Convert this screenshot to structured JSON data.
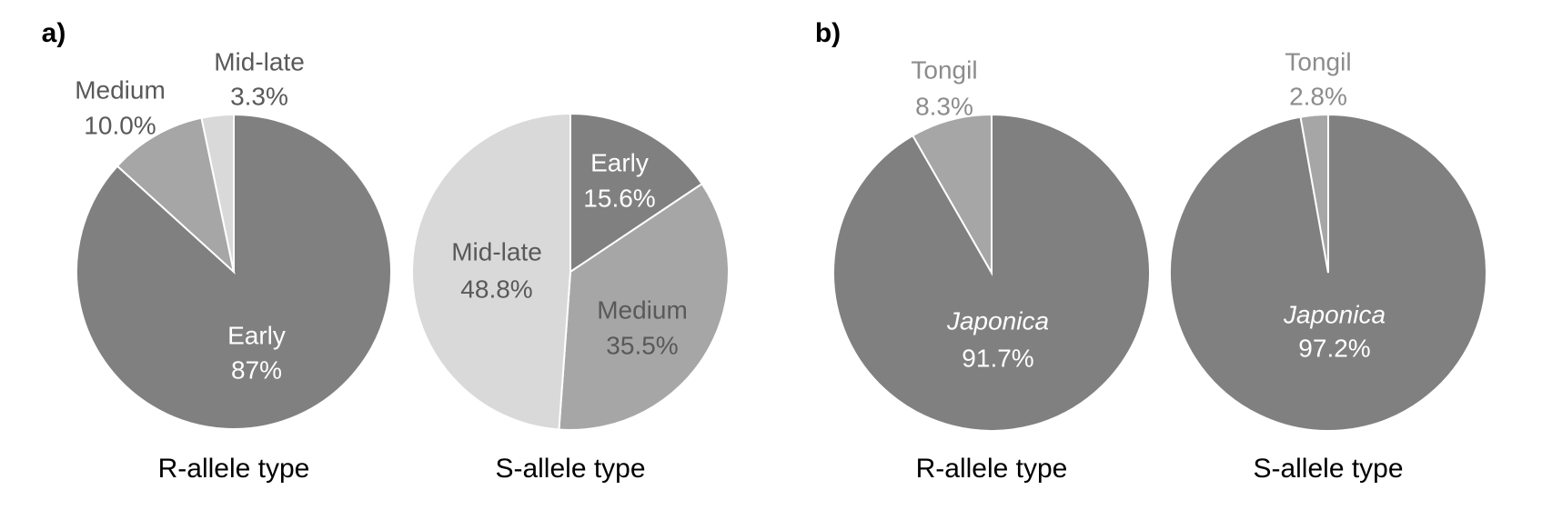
{
  "chart_data": [
    {
      "type": "pie",
      "panel_label": "a)",
      "title": "R-allele type",
      "categories": [
        "Early",
        "Medium",
        "Mid-late"
      ],
      "values": [
        87,
        10.0,
        3.3
      ],
      "value_labels": [
        "87%",
        "10.0%",
        "3.3%"
      ],
      "colors": [
        "#808080",
        "#a6a6a6",
        "#d9d9d9"
      ]
    },
    {
      "type": "pie",
      "title": "S-allele type",
      "categories": [
        "Early",
        "Medium",
        "Mid-late"
      ],
      "values": [
        15.6,
        35.5,
        48.8
      ],
      "value_labels": [
        "15.6%",
        "35.5%",
        "48.8%"
      ],
      "colors": [
        "#808080",
        "#a6a6a6",
        "#d9d9d9"
      ]
    },
    {
      "type": "pie",
      "panel_label": "b)",
      "title": "R-allele type",
      "categories": [
        "Japonica",
        "Tongil"
      ],
      "values": [
        91.7,
        8.3
      ],
      "value_labels": [
        "91.7%",
        "8.3%"
      ],
      "colors": [
        "#808080",
        "#a6a6a6"
      ]
    },
    {
      "type": "pie",
      "title": "S-allele type",
      "categories": [
        "Japonica",
        "Tongil"
      ],
      "values": [
        97.2,
        2.8
      ],
      "value_labels": [
        "97.2%",
        "2.8%"
      ],
      "colors": [
        "#808080",
        "#a6a6a6"
      ]
    }
  ]
}
